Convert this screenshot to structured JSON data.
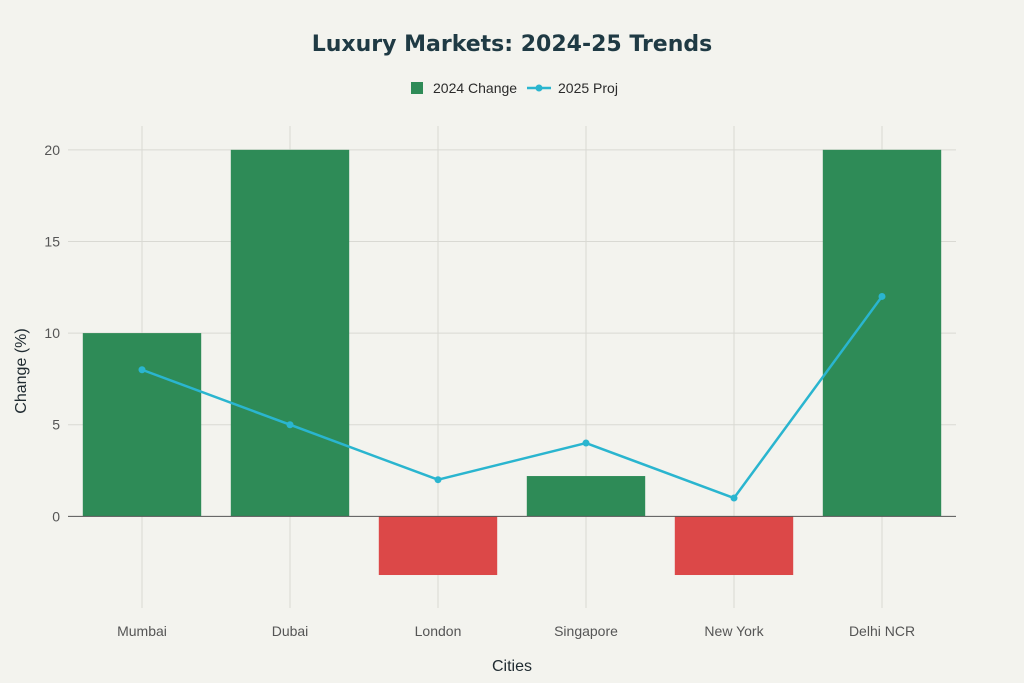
{
  "chart_data": {
    "type": "bar",
    "title": "Luxury Markets: 2024-25 Trends",
    "xlabel": "Cities",
    "ylabel": "Change (%)",
    "categories": [
      "Mumbai",
      "Dubai",
      "London",
      "Singapore",
      "New York",
      "Delhi NCR"
    ],
    "ylim": [
      -5,
      21.3
    ],
    "yticks": [
      0,
      5,
      10,
      15,
      20
    ],
    "grid": true,
    "legend_placement": "top-center",
    "series": [
      {
        "name": "2024 Change",
        "kind": "bar",
        "values": [
          10,
          20,
          -3.2,
          2.2,
          -3.2,
          20
        ],
        "color_positive": "#2e8b57",
        "color_negative": "#dc4848"
      },
      {
        "name": "2025 Proj",
        "kind": "line",
        "values": [
          8,
          5,
          2,
          4,
          1,
          12
        ],
        "color": "#2ab5cf"
      }
    ]
  }
}
